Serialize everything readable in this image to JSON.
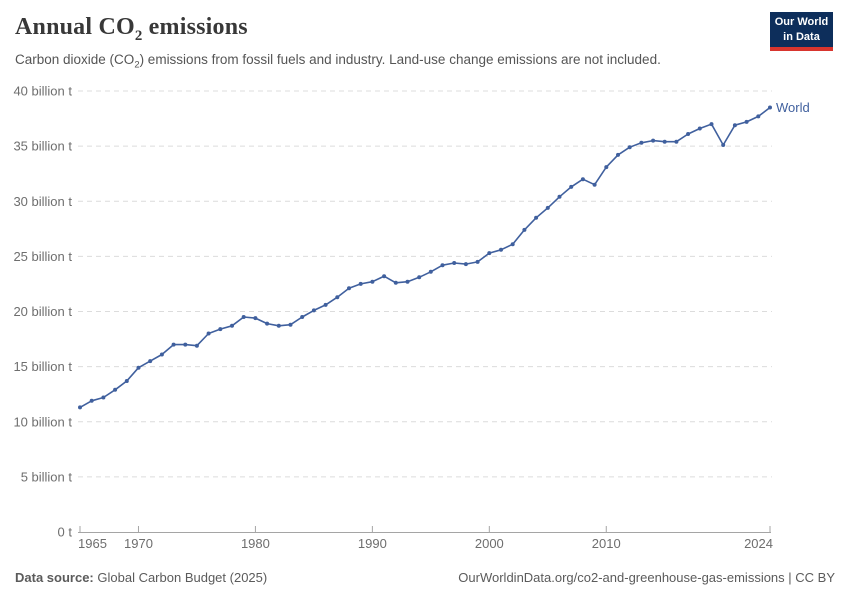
{
  "header": {
    "title": {
      "pre": "Annual CO",
      "sub": "2",
      "post": " emissions"
    },
    "subtitle": {
      "pre": "Carbon dioxide (CO",
      "sub": "2",
      "post": ") emissions from fossil fuels and industry. Land-use change emissions are not included."
    }
  },
  "logo": {
    "line1": "Our World",
    "line2": "in Data",
    "bg_color": "#0d2e5b",
    "accent_color": "#d8352e"
  },
  "chart_data": {
    "type": "line",
    "title": "Annual CO2 emissions",
    "unit": "billion t",
    "xlim": [
      1965,
      2024
    ],
    "ylim": [
      0,
      40
    ],
    "grid": "dashed-horizontal",
    "legend_position": "end-of-line-label",
    "x": [
      1965,
      1966,
      1967,
      1968,
      1969,
      1970,
      1971,
      1972,
      1973,
      1974,
      1975,
      1976,
      1977,
      1978,
      1979,
      1980,
      1981,
      1982,
      1983,
      1984,
      1985,
      1986,
      1987,
      1988,
      1989,
      1990,
      1991,
      1992,
      1993,
      1994,
      1995,
      1996,
      1997,
      1998,
      1999,
      2000,
      2001,
      2002,
      2003,
      2004,
      2005,
      2006,
      2007,
      2008,
      2009,
      2010,
      2011,
      2012,
      2013,
      2014,
      2015,
      2016,
      2017,
      2018,
      2019,
      2020,
      2021,
      2022,
      2023,
      2024
    ],
    "series": [
      {
        "name": "World",
        "color": "#40609E",
        "values": [
          11.3,
          11.9,
          12.2,
          12.9,
          13.7,
          14.9,
          15.5,
          16.1,
          17.0,
          17.0,
          16.9,
          18.0,
          18.4,
          18.7,
          19.5,
          19.4,
          18.9,
          18.7,
          18.8,
          19.5,
          20.1,
          20.6,
          21.3,
          22.1,
          22.5,
          22.7,
          23.2,
          22.6,
          22.7,
          23.1,
          23.6,
          24.2,
          24.4,
          24.3,
          24.5,
          25.3,
          25.6,
          26.1,
          27.4,
          28.5,
          29.4,
          30.4,
          31.3,
          32.0,
          31.5,
          33.1,
          34.2,
          34.9,
          35.3,
          35.5,
          35.4,
          35.4,
          36.1,
          36.6,
          37.0,
          35.1,
          36.9,
          37.2,
          37.7,
          38.5
        ]
      }
    ],
    "y_ticks": [
      {
        "value": 0,
        "label": "0 t"
      },
      {
        "value": 5,
        "label": "5 billion t"
      },
      {
        "value": 10,
        "label": "10 billion t"
      },
      {
        "value": 15,
        "label": "15 billion t"
      },
      {
        "value": 20,
        "label": "20 billion t"
      },
      {
        "value": 25,
        "label": "25 billion t"
      },
      {
        "value": 30,
        "label": "30 billion t"
      },
      {
        "value": 35,
        "label": "35 billion t"
      },
      {
        "value": 40,
        "label": "40 billion t"
      }
    ],
    "x_ticks": [
      {
        "value": 1965,
        "label": "1965"
      },
      {
        "value": 1970,
        "label": "1970"
      },
      {
        "value": 1980,
        "label": "1980"
      },
      {
        "value": 1990,
        "label": "1990"
      },
      {
        "value": 2000,
        "label": "2000"
      },
      {
        "value": 2010,
        "label": "2010"
      },
      {
        "value": 2024,
        "label": "2024"
      }
    ],
    "end_label": "World",
    "colors": {
      "gridline": "#dcdcdc",
      "axis": "#a5a5a5",
      "tick_label": "#6e6e6e"
    }
  },
  "footer": {
    "source_label": "Data source:",
    "source_value": "Global Carbon Budget (2025)",
    "attribution": "OurWorldinData.org/co2-and-greenhouse-gas-emissions | CC BY"
  }
}
